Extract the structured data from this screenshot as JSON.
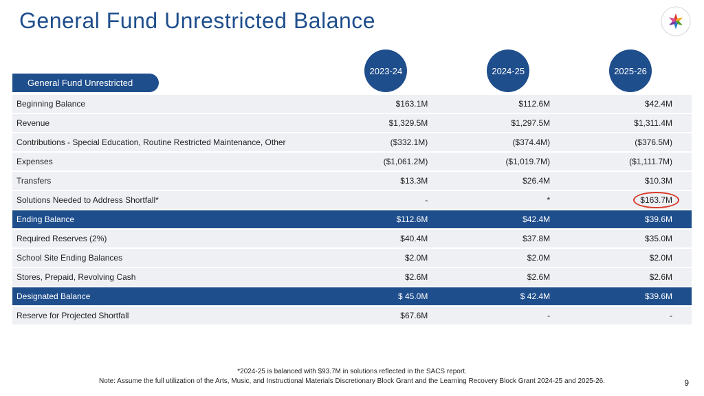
{
  "title": "General Fund Unrestricted Balance",
  "header_pill": "General Fund Unrestricted",
  "years": [
    "2023-24",
    "2024-25",
    "2025-26"
  ],
  "rows": [
    {
      "label": "Beginning Balance",
      "v": [
        "$163.1M",
        "$112.6M",
        "$42.4M"
      ],
      "style": "strip"
    },
    {
      "label": "Revenue",
      "v": [
        "$1,329.5M",
        "$1,297.5M",
        "$1,311.4M"
      ],
      "style": "strip"
    },
    {
      "label": "Contributions - Special Education, Routine Restricted Maintenance, Other",
      "v": [
        "($332.1M)",
        "($374.4M)",
        "($376.5M)"
      ],
      "style": "strip"
    },
    {
      "label": "Expenses",
      "v": [
        "($1,061.2M)",
        "($1,019.7M)",
        "($1,111.7M)"
      ],
      "style": "strip"
    },
    {
      "label": "Transfers",
      "v": [
        "$13.3M",
        "$26.4M",
        "$10.3M"
      ],
      "style": "strip"
    },
    {
      "label": "Solutions Needed to Address Shortfall*",
      "v": [
        "-",
        "*",
        "$163.7M"
      ],
      "style": "strip",
      "circle_col": 2
    },
    {
      "label": "Ending Balance",
      "v": [
        "$112.6M",
        "$42.4M",
        "$39.6M"
      ],
      "style": "hl"
    },
    {
      "label": "Required Reserves (2%)",
      "v": [
        "$40.4M",
        "$37.8M",
        "$35.0M"
      ],
      "style": "strip"
    },
    {
      "label": "School Site Ending Balances",
      "v": [
        "$2.0M",
        "$2.0M",
        "$2.0M"
      ],
      "style": "strip"
    },
    {
      "label": "Stores, Prepaid, Revolving Cash",
      "v": [
        "$2.6M",
        "$2.6M",
        "$2.6M"
      ],
      "style": "strip"
    },
    {
      "label": "Designated Balance",
      "v": [
        "$ 45.0M",
        "$ 42.4M",
        "$39.6M"
      ],
      "style": "hl"
    },
    {
      "label": "Reserve for Projected Shortfall",
      "v": [
        "$67.6M",
        "-",
        "-"
      ],
      "style": "strip"
    }
  ],
  "footnote1": "*2024-25 is balanced with $93.7M in solutions reflected in the SACS report.",
  "footnote2": "Note: Assume the full utilization of the Arts, Music, and Instructional Materials Discretionary Block Grant and the Learning Recovery Block Grant 2024-25 and 2025-26.",
  "page_number": "9",
  "colors": {
    "brand": "#1f4e8c",
    "stripe": "#eef0f4",
    "circle_stroke": "#d93a2a"
  }
}
